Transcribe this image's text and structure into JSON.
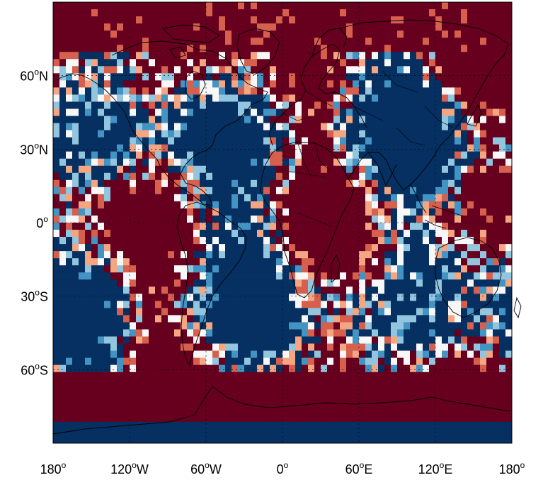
{
  "map": {
    "projection": "equirectangular",
    "lon_range": [
      -180,
      180
    ],
    "lat_range": [
      -90,
      90
    ],
    "grid": true,
    "colormap": {
      "positive": "#67001f",
      "negative": "#053061",
      "neutral": "#f7f7f7",
      "mid_red": "#d6604d",
      "light_red": "#f4a582",
      "mid_blue": "#4393c3",
      "light_blue": "#92c5de"
    },
    "x_ticks": [
      {
        "value": -180,
        "deg": "180",
        "hemi": ""
      },
      {
        "value": -120,
        "deg": "120",
        "hemi": "W"
      },
      {
        "value": -60,
        "deg": "60",
        "hemi": "W"
      },
      {
        "value": 0,
        "deg": "0",
        "hemi": ""
      },
      {
        "value": 60,
        "deg": "60",
        "hemi": "E"
      },
      {
        "value": 120,
        "deg": "120",
        "hemi": "E"
      },
      {
        "value": 180,
        "deg": "180",
        "hemi": ""
      }
    ],
    "y_ticks": [
      {
        "value": 60,
        "deg": "60",
        "hemi": "N"
      },
      {
        "value": 30,
        "deg": "30",
        "hemi": "N"
      },
      {
        "value": 0,
        "deg": "0",
        "hemi": ""
      },
      {
        "value": -30,
        "deg": "30",
        "hemi": "S"
      },
      {
        "value": -60,
        "deg": "60",
        "hemi": "S"
      }
    ],
    "degree_symbol": "o"
  }
}
